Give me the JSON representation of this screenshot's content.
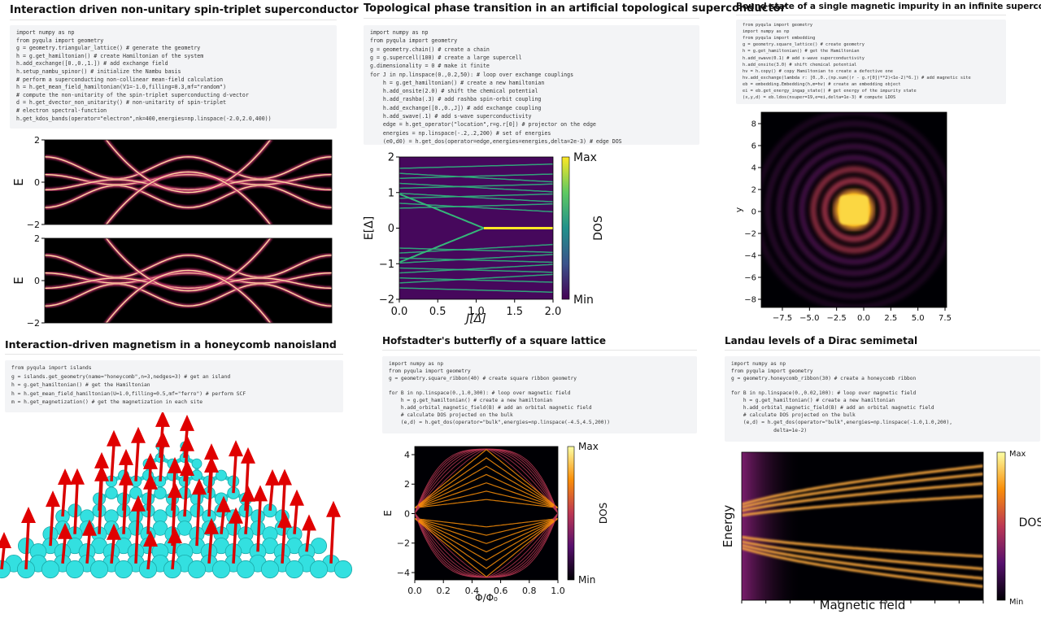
{
  "panels": [
    {
      "title": "Interaction driven non-unitary spin-triplet superconductor",
      "code": [
        [
          "import numpy as np",
          "from pyqula import geometry",
          "g = geometry.triangular_lattice() # generate the geometry",
          "h = g.get_hamiltonian() # create Hamiltonian of the system",
          "h.add_exchange([0.,0.,1.]) # add exchange field",
          "h.setup_nambu_spinor() # initialize the Nambu basis",
          "# perform a superconducting non-collinear mean-field calculation",
          "h = h.get_mean_field_hamiltonian(V1=-1.0,filling=0.3,mf=\"random\")",
          "# compute the non-unitarity of the spin-triplet superconducting d-vector",
          "d = h.get_dvector_non_unitarity() # non-unitarity of spin-triplet",
          "# electron spectral-function",
          "h.get_kdos_bands(operator=\"electron\",nk=400,energies=np.linspace(-2.0,2.0,400))"
        ]
      ],
      "plots": [
        {
          "ylabel": "E",
          "yticks": [
            "2",
            "0",
            "−2"
          ]
        },
        {
          "ylabel": "E",
          "yticks": [
            "2",
            "0",
            "−2"
          ]
        }
      ]
    },
    {
      "title": "Topological phase transition in an artificial topological superconductor",
      "code": [
        [
          "import numpy as np",
          "from pyqula import geometry",
          "g = geometry.chain() # create a chain",
          "g = g.supercell(100) # create a large supercell",
          "g.dimensionality = 0 # make it finite",
          "for J in np.linspace(0.,0.2,50): # loop over exchange couplings",
          "    h = g.get_hamiltonian() # create a new hamiltonian",
          "    h.add_onsite(2.0) # shift the chemical potential",
          "    h.add_rashba(.3) # add rashba spin-orbit coupling",
          "    h.add_exchange([0.,0.,J]) # add exchange coupling",
          "    h.add_swave(.1) # add s-wave superconductivity",
          "    edge = h.get_operator(\"location\",r=g.r[0]) # projector on the edge",
          "    energies = np.linspace(-.2,.2,200) # set of energies",
          "    (e0,d0) = h.get_dos(operator=edge,energies=energies,delta=2e-3) # edge DOS"
        ]
      ],
      "plots": [
        {
          "xlabel": "J[Δ]",
          "ylabel": "E[Δ]",
          "xticks": [
            "0.0",
            "0.5",
            "1.0",
            "1.5",
            "2.0"
          ],
          "yticks": [
            "2",
            "1",
            "0",
            "−1",
            "−2"
          ],
          "colorbar": {
            "max": "Max",
            "min": "Min",
            "label": "DOS"
          }
        }
      ]
    },
    {
      "title": "Bound state of a single magnetic impurity in an infinite superconductor",
      "code": [
        [
          "from pyqula import geometry",
          "import numpy as np",
          "from pyqula import embedding",
          "g = geometry.square_lattice() # create geometry",
          "h = g.get_hamiltonian() # get the Hamiltonian",
          "h.add_swave(0.1) # add s-wave superconductivity",
          "h.add_onsite(3.0) # shift chemical potential",
          "hv = h.copy() # copy Hamiltonian to create a defective one",
          "hv.add_exchange(lambda r: [0.,0.,(np.sum((r - g.r[0])**2)<1e-2)*6.]) # add magnetic site",
          "eb = embedding.Embedding(h,m=hv) # create an embedding object",
          "ei = eb.get_energy_ingap_state() # get energy of the impurity state",
          "(x,y,d) = eb.ldos(nsuper=19,e=ei,delta=1e-3) # compute LDOS"
        ]
      ],
      "plots": [
        {
          "ylabel": "y",
          "xticks": [
            "−7.5",
            "−5.0",
            "−2.5",
            "0.0",
            "2.5",
            "5.0",
            "7.5"
          ],
          "yticks": [
            "8",
            "6",
            "4",
            "2",
            "0",
            "−2",
            "−4",
            "−6",
            "−8"
          ]
        }
      ]
    },
    {
      "title": "Interaction-driven magnetism in a honeycomb nanoisland",
      "code": [
        [
          "from pyqula import islands",
          "g = islands.get_geometry(name=\"honeycomb\",n=3,nedges=3) # get an island",
          "h = g.get_hamiltonian() # get the Hamiltonian",
          "h = h.get_mean_field_hamiltonian(U=1.0,filling=0.5,mf=\"ferro\") # perform SCF",
          "m = h.get_magnetization() # get the magnetization in each site"
        ]
      ],
      "plots": []
    },
    {
      "title": "Hofstadter's butterfly of a square lattice",
      "code": [
        [
          "import numpy as np",
          "from pyqula import geometry",
          "g = geometry.square_ribbon(40) # create square ribbon geometry"
        ],
        [
          "for B in np.linspace(0.,1.0,300): # loop over magnetic field",
          "    h = g.get_hamiltonian() # create a new hamiltonian",
          "    h.add_orbital_magnetic_field(B) # add an orbital magnetic field",
          "    # calculate DOS projected on the bulk",
          "    (e,d) = h.get_dos(operator=\"bulk\",energies=np.linspace(-4.5,4.5,200))"
        ]
      ],
      "plots": [
        {
          "xlabel": "Φ/Φ₀",
          "ylabel": "E",
          "xticks": [
            "0.0",
            "0.2",
            "0.4",
            "0.6",
            "0.8",
            "1.0"
          ],
          "yticks": [
            "4",
            "2",
            "0",
            "−2",
            "−4"
          ],
          "colorbar": {
            "max": "Max",
            "min": "Min",
            "label": "DOS"
          }
        }
      ]
    },
    {
      "title": "Landau levels of a Dirac semimetal",
      "code": [
        [
          "import numpy as np",
          "from pyqula import geometry",
          "g = geometry.honeycomb_ribbon(30) # create a honeycomb ribbon"
        ],
        [
          "for B in np.linspace(0.,0.02,100): # loop over magnetic field",
          "    h = g.get_hamiltonian() # create a new hamiltonian",
          "    h.add_orbital_magnetic_field(B) # add an orbital magnetic field",
          "    # calculate DOS projected on the bulk",
          "    (e,d) = h.get_dos(operator=\"bulk\",energies=np.linspace(-1.0,1.0,200),",
          "              delta=1e-2)"
        ]
      ],
      "plots": [
        {
          "xlabel": "Magnetic field",
          "ylabel": "Energy",
          "colorbar": {
            "max": "Max",
            "min": "Min",
            "label": "DOS"
          }
        }
      ]
    }
  ]
}
